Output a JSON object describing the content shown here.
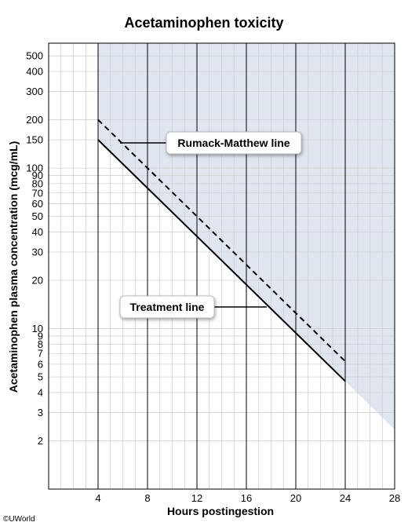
{
  "chart_data": {
    "type": "line",
    "title": "Acetaminophen toxicity",
    "xlabel": "Hours postingestion",
    "ylabel": "Acetaminophen plasma concentration (mcg/mL)",
    "x_scale": "linear",
    "y_scale": "log",
    "xlim": [
      0,
      28
    ],
    "ylim": [
      1,
      600
    ],
    "x_ticks": [
      4,
      8,
      12,
      16,
      20,
      24,
      28
    ],
    "y_ticks": [
      2,
      3,
      4,
      5,
      6,
      7,
      8,
      9,
      10,
      20,
      30,
      40,
      50,
      60,
      70,
      80,
      90,
      100,
      150,
      200,
      300,
      400,
      500
    ],
    "series": [
      {
        "name": "Rumack-Matthew line",
        "style": "dashed",
        "color": "#000000",
        "x": [
          4,
          24
        ],
        "y": [
          200,
          6.25
        ]
      },
      {
        "name": "Treatment line",
        "style": "solid",
        "color": "#000000",
        "x": [
          4,
          24
        ],
        "y": [
          150,
          4.7
        ]
      }
    ],
    "shaded_region": {
      "color": "#dfe6ef",
      "x_start": 4,
      "x_end": 28
    },
    "grid": true
  },
  "annotations": {
    "rumack": "Rumack-Matthew line",
    "treatment": "Treatment line"
  },
  "watermark": "©UWorld"
}
